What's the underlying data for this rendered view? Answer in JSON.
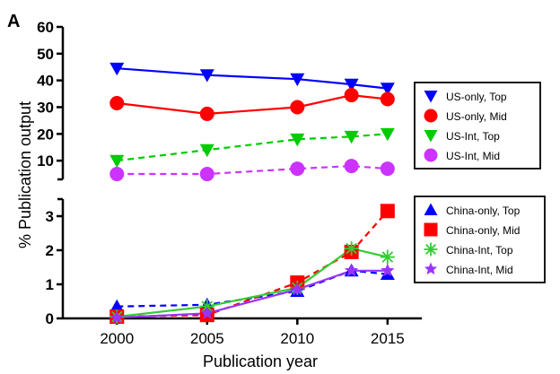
{
  "panel_label": "A",
  "chart_data": {
    "type": "line",
    "title": "",
    "xlabel": "Publication year",
    "ylabel": "% Publication output",
    "x": [
      2000,
      2005,
      2010,
      2013,
      2015
    ],
    "x_ticks": [
      "2000",
      "2005",
      "2010",
      "2015"
    ],
    "xlim": [
      1997.5,
      2016.5
    ],
    "y_axis_broken": true,
    "upper_panel": {
      "ylim": [
        3,
        60
      ],
      "y_ticks": [
        "10",
        "20",
        "30",
        "40",
        "50",
        "60"
      ],
      "series": [
        {
          "name": "US-only, Top",
          "values": [
            44.5,
            42,
            40.5,
            38.5,
            37
          ],
          "color": "#0000ff",
          "marker": "triangle-down",
          "line": "solid"
        },
        {
          "name": "US-only, Mid",
          "values": [
            31.5,
            27.5,
            30,
            34.5,
            33
          ],
          "color": "#ff0000",
          "marker": "circle",
          "line": "solid"
        },
        {
          "name": "US-Int, Top",
          "values": [
            10,
            14,
            18,
            19,
            20
          ],
          "color": "#00cc00",
          "marker": "triangle-down",
          "line": "dashed"
        },
        {
          "name": "US-Int, Mid",
          "values": [
            5,
            5,
            7,
            8,
            7
          ],
          "color": "#cc33ff",
          "marker": "circle",
          "line": "dashed"
        }
      ],
      "legend_placement": "right"
    },
    "lower_panel": {
      "ylim": [
        0,
        3.5
      ],
      "y_ticks": [
        "0",
        "1",
        "2",
        "3"
      ],
      "series": [
        {
          "name": "China-only, Top",
          "values": [
            0.35,
            0.4,
            0.8,
            1.4,
            1.3
          ],
          "color": "#0000ff",
          "marker": "triangle-up",
          "line": "dashed"
        },
        {
          "name": "China-only, Mid",
          "values": [
            0.05,
            0.1,
            1.05,
            1.95,
            3.15
          ],
          "color": "#ff0000",
          "marker": "square",
          "line": "dashed"
        },
        {
          "name": "China-Int, Top",
          "values": [
            0.05,
            0.35,
            0.9,
            2.05,
            1.8
          ],
          "color": "#33cc33",
          "marker": "asterisk",
          "line": "solid"
        },
        {
          "name": "China-Int, Mid",
          "values": [
            0.02,
            0.15,
            0.85,
            1.4,
            1.4
          ],
          "color": "#9933ff",
          "marker": "star",
          "line": "solid"
        }
      ],
      "legend_placement": "right"
    }
  }
}
